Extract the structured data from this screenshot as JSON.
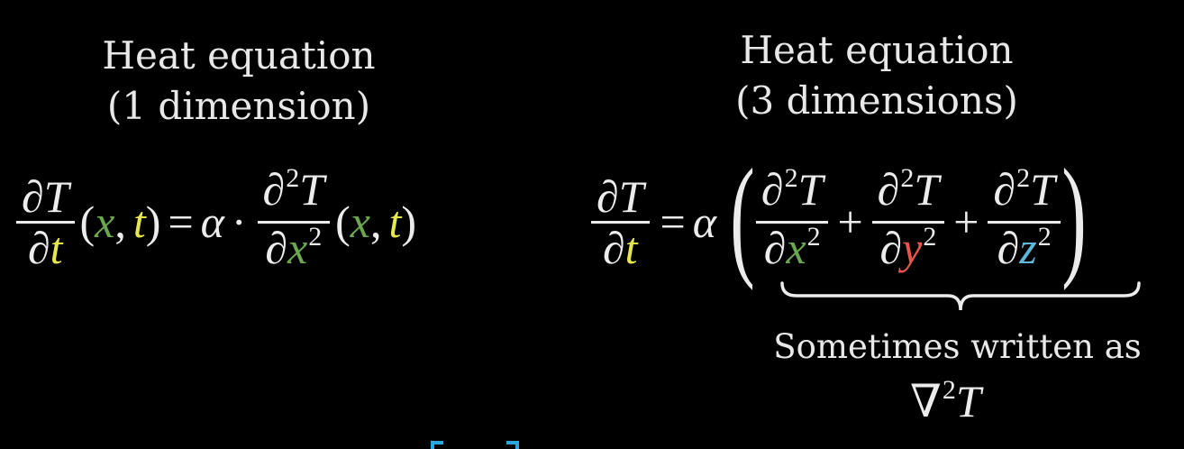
{
  "colors": {
    "background": "#000000",
    "text": "#ececec",
    "t_var": "#e6e64d",
    "x_var": "#6aa84f",
    "y_var": "#e8554a",
    "z_var": "#5fb8d8",
    "cursor_marks": "#29a8e0"
  },
  "left": {
    "title_line1": "Heat equation",
    "title_line2": "(1 dimension)",
    "equation": {
      "lhs_num": "∂T",
      "lhs_den_d": "∂",
      "lhs_den_var": "t",
      "open_paren": "(",
      "x": "x",
      "comma": ",",
      "t": "t",
      "close_paren": ")",
      "equals": "=",
      "alpha": "α",
      "dot": "·",
      "rhs_num_d": "∂",
      "rhs_num_exp": "2",
      "rhs_num_T": "T",
      "rhs_den_d": "∂",
      "rhs_den_var": "x",
      "rhs_den_exp": "2"
    }
  },
  "right": {
    "title_line1": "Heat equation",
    "title_line2": "(3 dimensions)",
    "equation": {
      "lhs_num": "∂T",
      "lhs_den_d": "∂",
      "lhs_den_var": "t",
      "equals": "=",
      "alpha": "α",
      "open_paren": "(",
      "close_paren": ")",
      "plus": "+",
      "term_num_d": "∂",
      "term_num_exp": "2",
      "term_num_T": "T",
      "term_den_d": "∂",
      "term_den_exp": "2",
      "var_x": "x",
      "var_y": "y",
      "var_z": "z"
    },
    "caption": "Sometimes written as",
    "alt_nabla": "∇",
    "alt_exp": "2",
    "alt_T": "T"
  }
}
